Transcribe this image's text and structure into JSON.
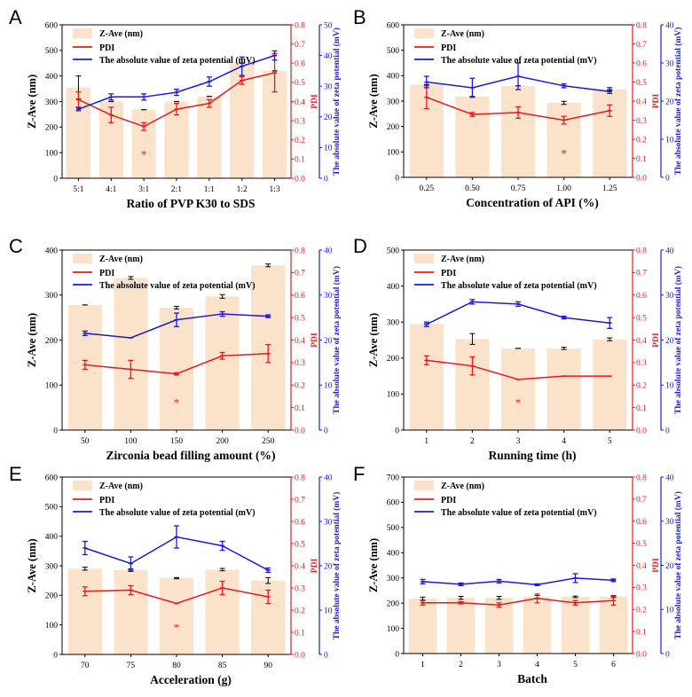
{
  "colors": {
    "bar": "#fbe3cb",
    "pdi": "#e8191b",
    "zeta": "#1a1ad6",
    "axis": "#000000"
  },
  "legend_labels": {
    "z": "Z-Ave (nm)",
    "pdi": "PDI",
    "zeta": "The absolute value of zeta potential (mV)"
  },
  "chart_data": [
    {
      "panel": "A",
      "type": "bar",
      "title": "",
      "xlabel": "Ratio of PVP K30 to SDS",
      "ylabel": "Z-Ave (nm)",
      "ylabel_pdi": "PDI",
      "ylabel_zeta": "The absolute value of zeta potential (mV)",
      "categories": [
        "5:1",
        "4:1",
        "3:1",
        "2:1",
        "1:1",
        "1:2",
        "1:3"
      ],
      "ylim": [
        0,
        600
      ],
      "yticks": [
        0,
        100,
        200,
        300,
        400,
        500,
        600
      ],
      "pdi_lim": [
        0,
        0.8
      ],
      "pdi_ticks": [
        0,
        0.1,
        0.2,
        0.3,
        0.4,
        0.5,
        0.6,
        0.7,
        0.8
      ],
      "zeta_lim": [
        0,
        50
      ],
      "zeta_ticks": [
        0,
        10,
        20,
        30,
        40,
        50
      ],
      "series": [
        {
          "name": "Z-Ave (nm)",
          "values": [
            355,
            300,
            268,
            300,
            320,
            450,
            420
          ],
          "errors": [
            45,
            0,
            0,
            0,
            0,
            0,
            0
          ]
        },
        {
          "name": "PDI",
          "values": [
            0.41,
            0.33,
            0.27,
            0.36,
            0.39,
            0.51,
            0.55
          ],
          "errors": [
            0.04,
            0.04,
            0.02,
            0.03,
            0.02,
            0.02,
            0.1
          ]
        },
        {
          "name": "The absolute value of zeta potential (mV)",
          "values": [
            22.5,
            26.5,
            26.5,
            28,
            31.5,
            36.5,
            40
          ],
          "errors": [
            0.5,
            1,
            1,
            1,
            1.5,
            3,
            1.5
          ]
        }
      ],
      "star_index": 2
    },
    {
      "panel": "B",
      "type": "bar",
      "title": "",
      "xlabel": "Concentration of API (%)",
      "ylabel": "Z-Ave (nm)",
      "ylabel_pdi": "PDI",
      "ylabel_zeta": "The absolute value of zeta potential (mV)",
      "categories": [
        "0.25",
        "0.50",
        "0.75",
        "1.00",
        "1.25"
      ],
      "ylim": [
        0,
        600
      ],
      "yticks": [
        0,
        100,
        200,
        300,
        400,
        500,
        600
      ],
      "pdi_lim": [
        0,
        0.8
      ],
      "pdi_ticks": [
        0,
        0.1,
        0.2,
        0.3,
        0.4,
        0.5,
        0.6,
        0.7,
        0.8
      ],
      "zeta_lim": [
        0,
        40
      ],
      "zeta_ticks": [
        0,
        10,
        20,
        30,
        40
      ],
      "series": [
        {
          "name": "Z-Ave (nm)",
          "values": [
            365,
            318,
            360,
            293,
            347
          ],
          "errors": [
            0,
            0,
            0,
            6,
            6
          ]
        },
        {
          "name": "PDI",
          "values": [
            0.42,
            0.33,
            0.34,
            0.3,
            0.35
          ],
          "errors": [
            0.06,
            0.01,
            0.03,
            0.02,
            0.03
          ]
        },
        {
          "name": "The absolute value of zeta potential (mV)",
          "values": [
            25,
            23.5,
            26.5,
            24,
            22.5
          ],
          "errors": [
            1.5,
            2.5,
            3.5,
            0.5,
            0.5
          ]
        }
      ],
      "star_index": 3
    },
    {
      "panel": "C",
      "type": "bar",
      "title": "",
      "xlabel": "Zirconia bead filling amount (%)",
      "ylabel": "Z-Ave (nm)",
      "ylabel_pdi": "PDI",
      "ylabel_zeta": "The absolute value of zeta potential (mV)",
      "categories": [
        "50",
        "100",
        "150",
        "200",
        "250"
      ],
      "ylim": [
        0,
        400
      ],
      "yticks": [
        0,
        100,
        200,
        300,
        400
      ],
      "pdi_lim": [
        0,
        0.8
      ],
      "pdi_ticks": [
        0,
        0.1,
        0.2,
        0.3,
        0.4,
        0.5,
        0.6,
        0.7,
        0.8
      ],
      "zeta_lim": [
        0,
        40
      ],
      "zeta_ticks": [
        0,
        10,
        20,
        30,
        40
      ],
      "series": [
        {
          "name": "Z-Ave (nm)",
          "values": [
            278,
            338,
            272,
            297,
            366
          ],
          "errors": [
            0,
            3,
            3,
            4,
            3
          ]
        },
        {
          "name": "PDI",
          "values": [
            0.29,
            0.27,
            0.25,
            0.33,
            0.34
          ],
          "errors": [
            0.02,
            0.04,
            0.005,
            0.015,
            0.04
          ]
        },
        {
          "name": "The absolute value of zeta potential (mV)",
          "values": [
            21.5,
            20.5,
            24.5,
            25.8,
            25.3
          ],
          "errors": [
            0.5,
            0,
            1.5,
            0.5,
            0.3
          ]
        }
      ],
      "star_index": 2
    },
    {
      "panel": "D",
      "type": "bar",
      "title": "",
      "xlabel": "Running time (h)",
      "ylabel": "Z-Ave (nm)",
      "ylabel_pdi": "PDI",
      "ylabel_zeta": "The absolute value of zeta potential (mV)",
      "categories": [
        "1",
        "2",
        "3",
        "4",
        "5"
      ],
      "ylim": [
        0,
        500
      ],
      "yticks": [
        0,
        100,
        200,
        300,
        400,
        500
      ],
      "pdi_lim": [
        0,
        0.8
      ],
      "pdi_ticks": [
        0,
        0.1,
        0.2,
        0.3,
        0.4,
        0.5,
        0.6,
        0.7,
        0.8
      ],
      "zeta_lim": [
        0,
        40
      ],
      "zeta_ticks": [
        0,
        10,
        20,
        30,
        40
      ],
      "series": [
        {
          "name": "Z-Ave (nm)",
          "values": [
            295,
            253,
            227,
            227,
            252
          ],
          "errors": [
            0,
            15,
            0,
            3,
            4
          ]
        },
        {
          "name": "PDI",
          "values": [
            0.31,
            0.285,
            0.225,
            0.24,
            0.24
          ],
          "errors": [
            0.02,
            0.04,
            0,
            0,
            0
          ]
        },
        {
          "name": "The absolute value of zeta potential (mV)",
          "values": [
            23.5,
            28.5,
            28,
            25,
            23.8
          ],
          "errors": [
            0.5,
            0.5,
            0.5,
            0.3,
            1.2
          ]
        }
      ],
      "star_index": 2
    },
    {
      "panel": "E",
      "type": "bar",
      "title": "",
      "xlabel": "Acceleration (g)",
      "ylabel": "Z-Ave (nm)",
      "ylabel_pdi": "PDI",
      "ylabel_zeta": "The absolute value of zeta potential (mV)",
      "categories": [
        "70",
        "75",
        "80",
        "85",
        "90"
      ],
      "ylim": [
        0,
        600
      ],
      "yticks": [
        0,
        100,
        200,
        300,
        400,
        500,
        600
      ],
      "pdi_lim": [
        0,
        0.8
      ],
      "pdi_ticks": [
        0,
        0.1,
        0.2,
        0.3,
        0.4,
        0.5,
        0.6,
        0.7,
        0.8
      ],
      "zeta_lim": [
        0,
        40
      ],
      "zeta_ticks": [
        0,
        10,
        20,
        30,
        40
      ],
      "series": [
        {
          "name": "Z-Ave (nm)",
          "values": [
            290,
            285,
            258,
            287,
            250
          ],
          "errors": [
            5,
            4,
            2,
            4,
            10
          ]
        },
        {
          "name": "PDI",
          "values": [
            0.285,
            0.29,
            0.23,
            0.3,
            0.26
          ],
          "errors": [
            0.02,
            0.02,
            0,
            0.03,
            0.03
          ]
        },
        {
          "name": "The absolute value of zeta potential (mV)",
          "values": [
            24,
            20.5,
            26.5,
            24.5,
            19
          ],
          "errors": [
            1.5,
            1.5,
            2.5,
            1,
            0.5
          ]
        }
      ],
      "star_index": 2
    },
    {
      "panel": "F",
      "type": "bar",
      "title": "",
      "xlabel": "Batch",
      "ylabel": "Z-Ave (nm)",
      "ylabel_pdi": "PDI",
      "ylabel_zeta": "The absolute value of zeta potential (mV)",
      "categories": [
        "1",
        "2",
        "3",
        "4",
        "5",
        "6"
      ],
      "ylim": [
        0,
        700
      ],
      "yticks": [
        0,
        100,
        200,
        300,
        400,
        500,
        600,
        700
      ],
      "pdi_lim": [
        0,
        0.8
      ],
      "pdi_ticks": [
        0,
        0.1,
        0.2,
        0.3,
        0.4,
        0.5,
        0.6,
        0.7,
        0.8
      ],
      "zeta_lim": [
        0,
        40
      ],
      "zeta_ticks": [
        0,
        10,
        20,
        30,
        40
      ],
      "series": [
        {
          "name": "Z-Ave (nm)",
          "values": [
            218,
            221,
            221,
            225,
            225,
            226
          ],
          "errors": [
            6,
            6,
            6,
            5,
            3,
            4
          ]
        },
        {
          "name": "PDI",
          "values": [
            0.23,
            0.23,
            0.22,
            0.25,
            0.23,
            0.24
          ],
          "errors": [
            0.01,
            0.005,
            0.01,
            0.02,
            0.01,
            0.02
          ]
        },
        {
          "name": "The absolute value of zeta potential (mV)",
          "values": [
            16.3,
            15.7,
            16.4,
            15.6,
            17.1,
            16.6
          ],
          "errors": [
            0.5,
            0.3,
            0.4,
            0.2,
            1,
            0.3
          ]
        }
      ],
      "star_index": -1
    }
  ]
}
